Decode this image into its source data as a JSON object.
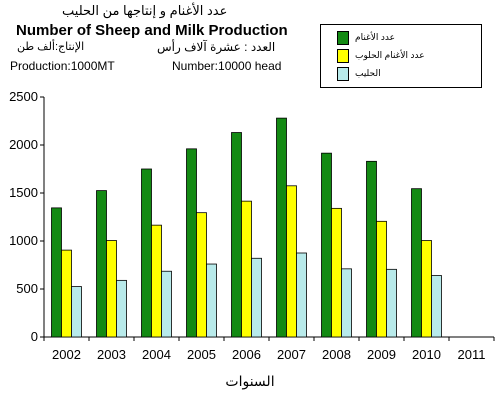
{
  "header": {
    "title_ar": "عدد الأغنام و إنتاجها من الحليب",
    "title_en": "Number of Sheep and Milk  Production",
    "production_ar": "الإنتاج:ألف طن",
    "number_ar": "العدد :  عشرة آلاف رأس",
    "production_en": "Production:1000MT",
    "number_en": "Number:10000 head"
  },
  "chart_data": {
    "type": "bar",
    "categories": [
      "2002",
      "2003",
      "2004",
      "2005",
      "2006",
      "2007",
      "2008",
      "2009",
      "2010",
      "2011"
    ],
    "series": [
      {
        "name": "عدد الأغنام",
        "color": "#138a13",
        "values": [
          1345,
          1525,
          1750,
          1960,
          2130,
          2280,
          1915,
          1830,
          1545,
          null
        ]
      },
      {
        "name": "عدد الأغنام الحلوب",
        "color": "#ffff00",
        "values": [
          905,
          1005,
          1165,
          1295,
          1415,
          1575,
          1340,
          1205,
          1005,
          null
        ]
      },
      {
        "name": "الحليب",
        "color": "#b8eaea",
        "values": [
          525,
          590,
          685,
          760,
          820,
          875,
          710,
          705,
          640,
          null
        ]
      }
    ],
    "yticks": [
      "0",
      "500",
      "1000",
      "1500",
      "2000",
      "2500"
    ],
    "ylim": [
      0,
      2500
    ],
    "xlabel": "السنوات",
    "legend_position": "top-right",
    "grid": false
  }
}
